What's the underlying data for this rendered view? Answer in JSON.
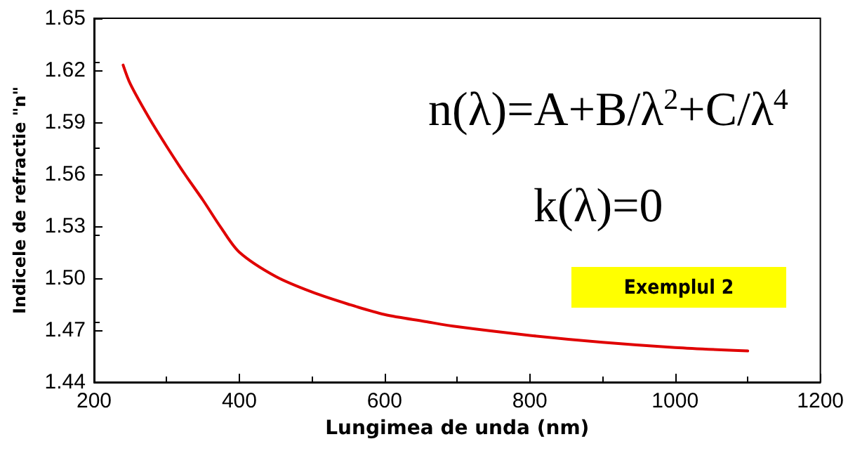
{
  "chart_data": {
    "type": "line",
    "xlabel": "Lungimea de unda (nm)",
    "ylabel": "Indicele de refractie \"n\"",
    "annotations": [
      "n(λ)=A+B/λ$^{2}$+C/λ$^{4}$",
      "k(λ)=0",
      "Exemplul 2"
    ],
    "series": [
      {
        "color": "#e00000",
        "x": [
          240,
          250,
          275,
          300,
          325,
          350,
          375,
          400,
          450,
          500,
          550,
          600,
          656,
          700,
          800,
          900,
          1000,
          1100
        ],
        "values": [
          1.623,
          1.612,
          1.593,
          1.576,
          1.56,
          1.545,
          1.529,
          1.515,
          1.501,
          1.492,
          1.485,
          1.479,
          1.475,
          1.472,
          1.467,
          1.463,
          1.46,
          1.458
        ]
      }
    ],
    "xlim": [
      200,
      1200
    ],
    "xticks": [
      200,
      400,
      600,
      800,
      1000,
      1200
    ],
    "ylim": [
      1.44,
      1.65
    ],
    "yticks": [
      {
        "value": 1.44,
        "label": "1.44"
      },
      {
        "value": 1.47,
        "label": "1.47"
      },
      {
        "value": 1.5,
        "label": "1.50"
      },
      {
        "value": 1.53,
        "label": "1.53"
      },
      {
        "value": 1.56,
        "label": "1.56"
      },
      {
        "value": 1.59,
        "label": "1.59"
      },
      {
        "value": 1.62,
        "label": "1.62"
      },
      {
        "value": 1.65,
        "label": "1.65"
      }
    ],
    "grid": false,
    "marker": "none",
    "line_style": "solid"
  }
}
